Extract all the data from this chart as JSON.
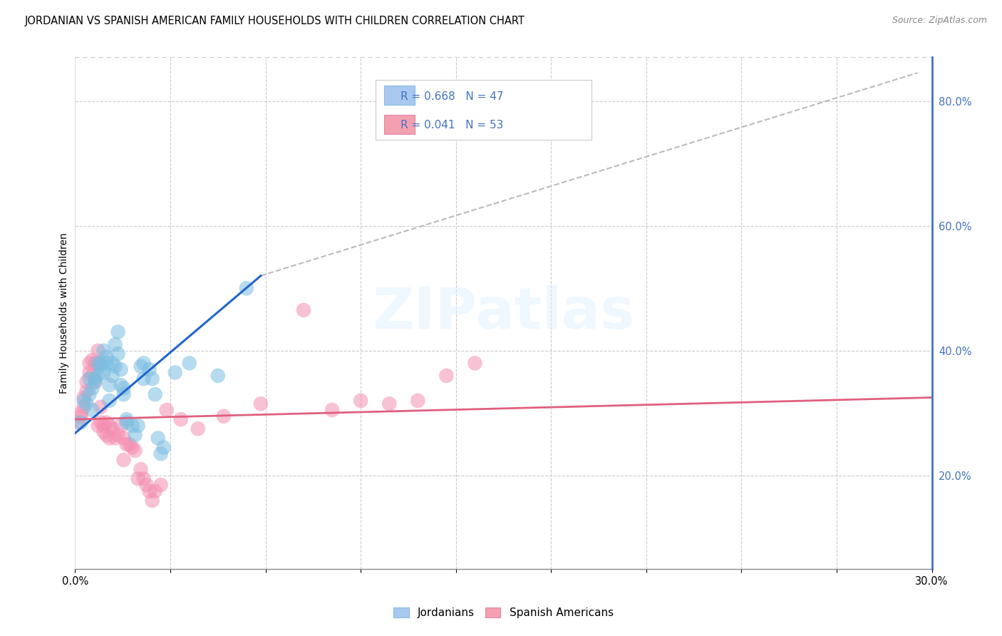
{
  "title": "JORDANIAN VS SPANISH AMERICAN FAMILY HOUSEHOLDS WITH CHILDREN CORRELATION CHART",
  "source": "Source: ZipAtlas.com",
  "ylabel": "Family Households with Children",
  "xlim": [
    0.0,
    0.3
  ],
  "ylim": [
    0.05,
    0.87
  ],
  "watermark": "ZIPatlas",
  "joranian_color": "#7bbde0",
  "spanish_color": "#f48fb1",
  "blue_line_color": "#2266cc",
  "pink_line_color": "#e06080",
  "dashed_line_color": "#bbbbbb",
  "legend_R1": "R = 0.668",
  "legend_N1": "N = 47",
  "legend_R2": "R = 0.041",
  "legend_N2": "N = 53",
  "legend_color1": "#a8c8f0",
  "legend_color2": "#f4a0b0",
  "right_tick_color": "#4472c4",
  "right_spine_color": "#4472c4",
  "jordanian_points": [
    [
      0.002,
      0.285
    ],
    [
      0.003,
      0.32
    ],
    [
      0.004,
      0.315
    ],
    [
      0.005,
      0.33
    ],
    [
      0.005,
      0.355
    ],
    [
      0.006,
      0.34
    ],
    [
      0.006,
      0.305
    ],
    [
      0.007,
      0.35
    ],
    [
      0.007,
      0.355
    ],
    [
      0.008,
      0.38
    ],
    [
      0.008,
      0.36
    ],
    [
      0.009,
      0.375
    ],
    [
      0.009,
      0.38
    ],
    [
      0.01,
      0.365
    ],
    [
      0.01,
      0.4
    ],
    [
      0.011,
      0.39
    ],
    [
      0.011,
      0.38
    ],
    [
      0.012,
      0.345
    ],
    [
      0.012,
      0.32
    ],
    [
      0.013,
      0.36
    ],
    [
      0.013,
      0.38
    ],
    [
      0.014,
      0.375
    ],
    [
      0.014,
      0.41
    ],
    [
      0.015,
      0.43
    ],
    [
      0.015,
      0.395
    ],
    [
      0.016,
      0.37
    ],
    [
      0.016,
      0.345
    ],
    [
      0.017,
      0.34
    ],
    [
      0.017,
      0.33
    ],
    [
      0.018,
      0.29
    ],
    [
      0.018,
      0.285
    ],
    [
      0.02,
      0.28
    ],
    [
      0.021,
      0.265
    ],
    [
      0.022,
      0.28
    ],
    [
      0.023,
      0.375
    ],
    [
      0.024,
      0.355
    ],
    [
      0.024,
      0.38
    ],
    [
      0.026,
      0.37
    ],
    [
      0.027,
      0.355
    ],
    [
      0.028,
      0.33
    ],
    [
      0.029,
      0.26
    ],
    [
      0.03,
      0.235
    ],
    [
      0.031,
      0.245
    ],
    [
      0.035,
      0.365
    ],
    [
      0.04,
      0.38
    ],
    [
      0.05,
      0.36
    ],
    [
      0.06,
      0.5
    ]
  ],
  "spanish_points": [
    [
      0.001,
      0.285
    ],
    [
      0.002,
      0.295
    ],
    [
      0.002,
      0.3
    ],
    [
      0.003,
      0.31
    ],
    [
      0.003,
      0.325
    ],
    [
      0.004,
      0.335
    ],
    [
      0.004,
      0.35
    ],
    [
      0.005,
      0.365
    ],
    [
      0.005,
      0.38
    ],
    [
      0.006,
      0.36
    ],
    [
      0.006,
      0.385
    ],
    [
      0.007,
      0.38
    ],
    [
      0.007,
      0.35
    ],
    [
      0.008,
      0.4
    ],
    [
      0.008,
      0.28
    ],
    [
      0.009,
      0.31
    ],
    [
      0.009,
      0.285
    ],
    [
      0.01,
      0.28
    ],
    [
      0.01,
      0.27
    ],
    [
      0.011,
      0.285
    ],
    [
      0.011,
      0.265
    ],
    [
      0.012,
      0.28
    ],
    [
      0.012,
      0.26
    ],
    [
      0.013,
      0.275
    ],
    [
      0.014,
      0.26
    ],
    [
      0.015,
      0.265
    ],
    [
      0.016,
      0.28
    ],
    [
      0.017,
      0.26
    ],
    [
      0.017,
      0.225
    ],
    [
      0.018,
      0.25
    ],
    [
      0.019,
      0.25
    ],
    [
      0.02,
      0.245
    ],
    [
      0.021,
      0.24
    ],
    [
      0.022,
      0.195
    ],
    [
      0.023,
      0.21
    ],
    [
      0.024,
      0.195
    ],
    [
      0.025,
      0.185
    ],
    [
      0.026,
      0.175
    ],
    [
      0.027,
      0.16
    ],
    [
      0.028,
      0.175
    ],
    [
      0.03,
      0.185
    ],
    [
      0.032,
      0.305
    ],
    [
      0.037,
      0.29
    ],
    [
      0.043,
      0.275
    ],
    [
      0.052,
      0.295
    ],
    [
      0.065,
      0.315
    ],
    [
      0.08,
      0.465
    ],
    [
      0.09,
      0.305
    ],
    [
      0.1,
      0.32
    ],
    [
      0.11,
      0.315
    ],
    [
      0.12,
      0.32
    ],
    [
      0.13,
      0.36
    ],
    [
      0.14,
      0.38
    ]
  ],
  "blue_line": [
    [
      0.0,
      0.268
    ],
    [
      0.065,
      0.52
    ]
  ],
  "pink_line": [
    [
      0.0,
      0.29
    ],
    [
      0.3,
      0.325
    ]
  ],
  "dashed_line": [
    [
      0.065,
      0.52
    ],
    [
      0.295,
      0.845
    ]
  ]
}
